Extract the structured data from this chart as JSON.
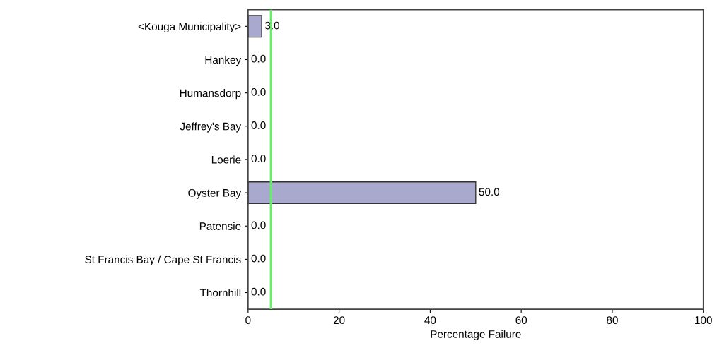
{
  "chart_data": {
    "type": "bar",
    "orientation": "horizontal",
    "xlabel": "Percentage Failure",
    "categories": [
      "<Kouga Municipality>",
      "Hankey",
      "Humansdorp",
      "Jeffrey's Bay",
      "Loerie",
      "Oyster Bay",
      "Patensie",
      "St Francis Bay / Cape St Francis",
      "Thornhill"
    ],
    "values": [
      3.0,
      0.0,
      0.0,
      0.0,
      0.0,
      50.0,
      0.0,
      0.0,
      0.0
    ],
    "value_labels": [
      "3.0",
      "0.0",
      "0.0",
      "0.0",
      "0.0",
      "50.0",
      "0.0",
      "0.0",
      "0.0"
    ],
    "color": "#a9a9cf",
    "xlim": [
      0,
      100
    ],
    "xticks": [
      0,
      20,
      40,
      60,
      80,
      100
    ],
    "ref_lines": [
      {
        "axis": "x",
        "value": 5,
        "color": "#66ee66"
      }
    ],
    "grid": false,
    "legend": false
  }
}
